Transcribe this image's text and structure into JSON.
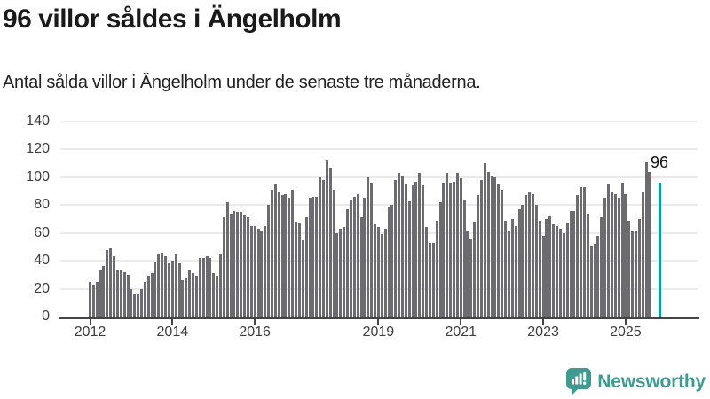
{
  "header": {
    "title": "96 villor såldes i Ängelholm",
    "subtitle": "Antal sålda villor i Ängelholm under de senaste tre månaderna."
  },
  "chart_data": {
    "type": "bar",
    "title": "96 villor såldes i Ängelholm",
    "subtitle": "Antal sålda villor i Ängelholm under de senaste tre månaderna.",
    "ylim": [
      0,
      140
    ],
    "y_ticks": [
      "0",
      "20",
      "40",
      "60",
      "80",
      "100",
      "120",
      "140"
    ],
    "grid": true,
    "legend": "none",
    "x_start_year": "2012",
    "x_ticks": [
      {
        "label": "2012",
        "slot": 0
      },
      {
        "label": "2014",
        "slot": 24
      },
      {
        "label": "2016",
        "slot": 48
      },
      {
        "label": "2019",
        "slot": 84
      },
      {
        "label": "2021",
        "slot": 108
      },
      {
        "label": "2023",
        "slot": 132
      },
      {
        "label": "2025",
        "slot": 156
      }
    ],
    "values": [
      25,
      23,
      25,
      34,
      36,
      48,
      49,
      43,
      34,
      33,
      32,
      30,
      20,
      16,
      16,
      20,
      25,
      29,
      31,
      39,
      45,
      46,
      43,
      38,
      40,
      45,
      38,
      26,
      28,
      33,
      31,
      29,
      42,
      42,
      43,
      42,
      31,
      29,
      45,
      71,
      82,
      74,
      76,
      75,
      75,
      73,
      71,
      65,
      65,
      63,
      62,
      65,
      80,
      91,
      95,
      89,
      87,
      88,
      85,
      91,
      68,
      67,
      55,
      71,
      85,
      86,
      86,
      100,
      98,
      112,
      106,
      91,
      60,
      63,
      64,
      77,
      84,
      86,
      88,
      71,
      85,
      100,
      96,
      66,
      64,
      59,
      63,
      78,
      80,
      98,
      103,
      101,
      95,
      83,
      94,
      97,
      103,
      94,
      64,
      53,
      53,
      69,
      82,
      96,
      103,
      96,
      97,
      103,
      99,
      84,
      61,
      56,
      68,
      87,
      98,
      110,
      104,
      101,
      100,
      95,
      91,
      69,
      61,
      70,
      65,
      77,
      80,
      87,
      90,
      88,
      80,
      69,
      58,
      70,
      72,
      66,
      65,
      63,
      60,
      67,
      76,
      76,
      87,
      93,
      93,
      74,
      50,
      52,
      58,
      71,
      85,
      95,
      89,
      88,
      85,
      96,
      88,
      69,
      61,
      61,
      70,
      90,
      111,
      104
    ],
    "highlight": {
      "value": 96,
      "label": "96",
      "slot": 166
    },
    "colors": {
      "bar": "#6b6b70",
      "highlight": "#00a1a6",
      "grid": "#eaeaea",
      "axis": "#454545",
      "tick_label": "#3d3d3d"
    }
  },
  "footer": {
    "brand": "Newsworthy",
    "brand_color": "#3f9b90"
  }
}
